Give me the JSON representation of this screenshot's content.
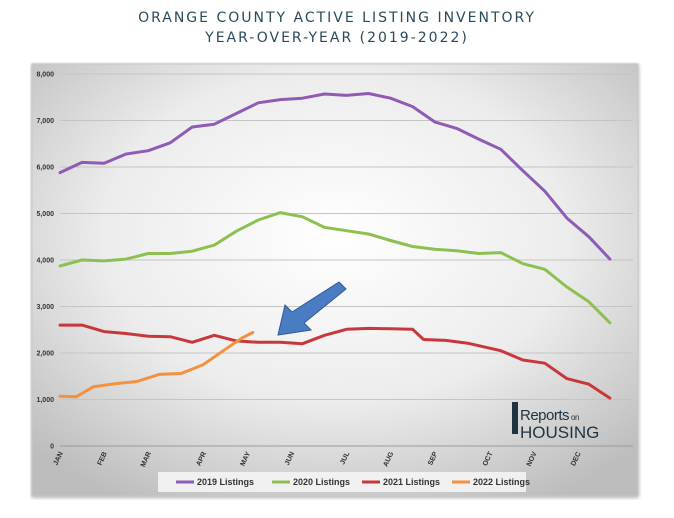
{
  "header": {
    "title_line1": "ORANGE COUNTY ACTIVE LISTING INVENTORY",
    "title_line2": "YEAR-OVER-YEAR (2019-2022)"
  },
  "logo": {
    "line1": "Reports",
    "line1_small": "on",
    "line2": "HOUSING"
  },
  "colors": {
    "2019": "#8e5bb5",
    "2020": "#8cc152",
    "2021": "#c8383a",
    "2022": "#f3913f",
    "arrow": "#4a7cc4"
  },
  "chart_data": {
    "type": "line",
    "title": "ORANGE COUNTY ACTIVE LISTING INVENTORY YEAR-OVER-YEAR (2019-2022)",
    "xlabel": "",
    "ylabel": "",
    "ylim": [
      0,
      8000
    ],
    "yticks": [
      0,
      1000,
      2000,
      3000,
      4000,
      5000,
      6000,
      7000,
      8000
    ],
    "ytick_labels": [
      "0",
      "1,000",
      "2,000",
      "3,000",
      "4,000",
      "5,000",
      "6,000",
      "7,000",
      "8,000"
    ],
    "x_count": 53,
    "month_labels": [
      {
        "label": "JAN",
        "week": 0
      },
      {
        "label": "FEB",
        "week": 4
      },
      {
        "label": "MAR",
        "week": 8
      },
      {
        "label": "APR",
        "week": 13
      },
      {
        "label": "MAY",
        "week": 17
      },
      {
        "label": "JUN",
        "week": 21
      },
      {
        "label": "JUL",
        "week": 26
      },
      {
        "label": "AUG",
        "week": 30
      },
      {
        "label": "SEP",
        "week": 34
      },
      {
        "label": "OCT",
        "week": 39
      },
      {
        "label": "NOV",
        "week": 43
      },
      {
        "label": "DEC",
        "week": 47
      }
    ],
    "grid": true,
    "legend": "bottom",
    "annotation": "arrow pointing to latest 2022 value",
    "series": [
      {
        "name": "2019 Listings",
        "color": "#8e5bb5",
        "points": [
          [
            0,
            5880
          ],
          [
            2,
            6100
          ],
          [
            4,
            6080
          ],
          [
            6,
            6280
          ],
          [
            8,
            6350
          ],
          [
            10,
            6520
          ],
          [
            12,
            6860
          ],
          [
            14,
            6920
          ],
          [
            16,
            7150
          ],
          [
            18,
            7380
          ],
          [
            20,
            7450
          ],
          [
            22,
            7480
          ],
          [
            24,
            7570
          ],
          [
            26,
            7540
          ],
          [
            28,
            7580
          ],
          [
            30,
            7480
          ],
          [
            32,
            7300
          ],
          [
            34,
            6970
          ],
          [
            36,
            6830
          ],
          [
            38,
            6600
          ],
          [
            40,
            6380
          ],
          [
            42,
            5920
          ],
          [
            44,
            5480
          ],
          [
            46,
            4900
          ],
          [
            48,
            4500
          ],
          [
            49.9,
            4020
          ]
        ]
      },
      {
        "name": "2020 Listings",
        "color": "#8cc152",
        "points": [
          [
            0,
            3870
          ],
          [
            2,
            4000
          ],
          [
            4,
            3980
          ],
          [
            6,
            4020
          ],
          [
            8,
            4140
          ],
          [
            10,
            4140
          ],
          [
            12,
            4190
          ],
          [
            14,
            4320
          ],
          [
            16,
            4620
          ],
          [
            18,
            4860
          ],
          [
            20,
            5020
          ],
          [
            22,
            4930
          ],
          [
            24,
            4700
          ],
          [
            26,
            4630
          ],
          [
            28,
            4560
          ],
          [
            30,
            4420
          ],
          [
            32,
            4290
          ],
          [
            34,
            4230
          ],
          [
            36,
            4200
          ],
          [
            38,
            4140
          ],
          [
            40,
            4160
          ],
          [
            42,
            3920
          ],
          [
            44,
            3800
          ],
          [
            46,
            3420
          ],
          [
            48,
            3100
          ],
          [
            49.9,
            2650
          ]
        ]
      },
      {
        "name": "2021 Listings",
        "color": "#c8383a",
        "points": [
          [
            0,
            2600
          ],
          [
            2,
            2600
          ],
          [
            4,
            2460
          ],
          [
            6,
            2420
          ],
          [
            8,
            2360
          ],
          [
            10,
            2350
          ],
          [
            12,
            2230
          ],
          [
            14,
            2380
          ],
          [
            16,
            2260
          ],
          [
            18,
            2230
          ],
          [
            20,
            2230
          ],
          [
            22,
            2200
          ],
          [
            24,
            2380
          ],
          [
            26,
            2510
          ],
          [
            28,
            2530
          ],
          [
            30,
            2520
          ],
          [
            32,
            2510
          ],
          [
            33,
            2290
          ],
          [
            35,
            2270
          ],
          [
            37,
            2210
          ],
          [
            40,
            2050
          ],
          [
            42,
            1850
          ],
          [
            44,
            1780
          ],
          [
            46,
            1450
          ],
          [
            48,
            1330
          ],
          [
            49.9,
            1030
          ]
        ]
      },
      {
        "name": "2022 Listings",
        "color": "#f3913f",
        "points": [
          [
            0,
            1070
          ],
          [
            1.5,
            1060
          ],
          [
            3,
            1270
          ],
          [
            5,
            1340
          ],
          [
            7,
            1390
          ],
          [
            9,
            1540
          ],
          [
            11,
            1560
          ],
          [
            13,
            1750
          ],
          [
            15,
            2080
          ],
          [
            16.5,
            2320
          ],
          [
            17.5,
            2440
          ]
        ]
      }
    ]
  }
}
